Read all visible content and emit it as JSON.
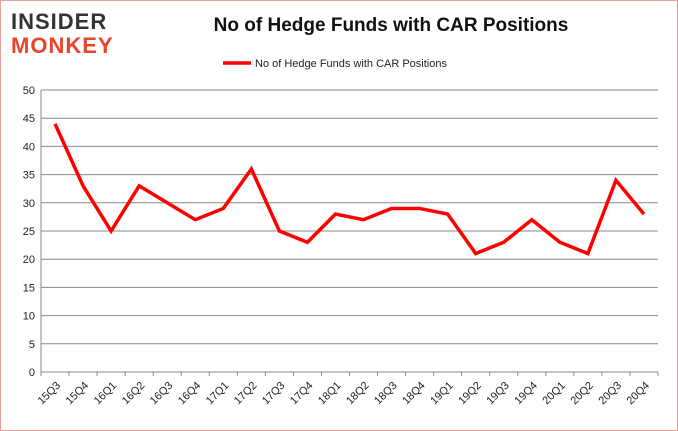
{
  "logo": {
    "line1": "INSIDER",
    "line2": "MONKEY"
  },
  "chart_data": {
    "type": "line",
    "title": "No of Hedge Funds with CAR Positions",
    "categories": [
      "15Q3",
      "15Q4",
      "16Q1",
      "16Q2",
      "16Q3",
      "16Q4",
      "17Q1",
      "17Q2",
      "17Q3",
      "17Q4",
      "18Q1",
      "18Q2",
      "18Q3",
      "18Q4",
      "19Q1",
      "19Q2",
      "19Q3",
      "19Q4",
      "20Q1",
      "20Q2",
      "20Q3",
      "20Q4"
    ],
    "series": [
      {
        "name": "No of Hedge Funds with CAR Positions",
        "color": "#ff0000",
        "values": [
          44,
          33,
          25,
          33,
          30,
          27,
          29,
          36,
          25,
          23,
          28,
          27,
          29,
          29,
          28,
          21,
          23,
          27,
          23,
          21,
          34,
          28
        ]
      }
    ],
    "ylim": [
      0,
      50
    ],
    "yticks": [
      0,
      5,
      10,
      15,
      20,
      25,
      30,
      35,
      40,
      45,
      50
    ],
    "grid": true,
    "legend": "top-center"
  }
}
